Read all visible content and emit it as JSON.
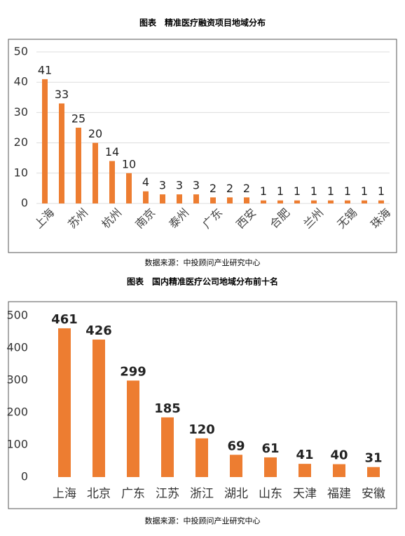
{
  "chart_data": [
    {
      "type": "bar",
      "title": "图表　精准医疗融资项目地域分布",
      "categories": [
        "上海",
        null,
        "苏州",
        null,
        "杭州",
        null,
        "南京",
        null,
        "泰州",
        null,
        "广东",
        null,
        "西安",
        null,
        "合肥",
        null,
        "兰州",
        null,
        "无锡",
        null,
        "珠海"
      ],
      "values": [
        41,
        33,
        25,
        20,
        14,
        10,
        4,
        3,
        3,
        3,
        2,
        2,
        2,
        1,
        1,
        1,
        1,
        1,
        1,
        1,
        1
      ],
      "color": "#ed7d31",
      "ylim": [
        0,
        50
      ],
      "yticks": [
        0,
        10,
        20,
        30,
        40,
        50
      ],
      "grid": true,
      "source": "数据来源：中投顾问产业研究中心"
    },
    {
      "type": "bar",
      "title": "图表　国内精准医疗公司地域分布前十名",
      "categories": [
        "上海",
        "北京",
        "广东",
        "江苏",
        "浙江",
        "湖北",
        "山东",
        "天津",
        "福建",
        "安徽"
      ],
      "values": [
        461,
        426,
        299,
        185,
        120,
        69,
        61,
        41,
        40,
        31
      ],
      "color": "#ed7d31",
      "ylim": [
        0,
        500
      ],
      "yticks": [
        0,
        100,
        200,
        300,
        400,
        500
      ],
      "grid": false,
      "source": "数据来源：中投顾问产业研究中心"
    }
  ]
}
